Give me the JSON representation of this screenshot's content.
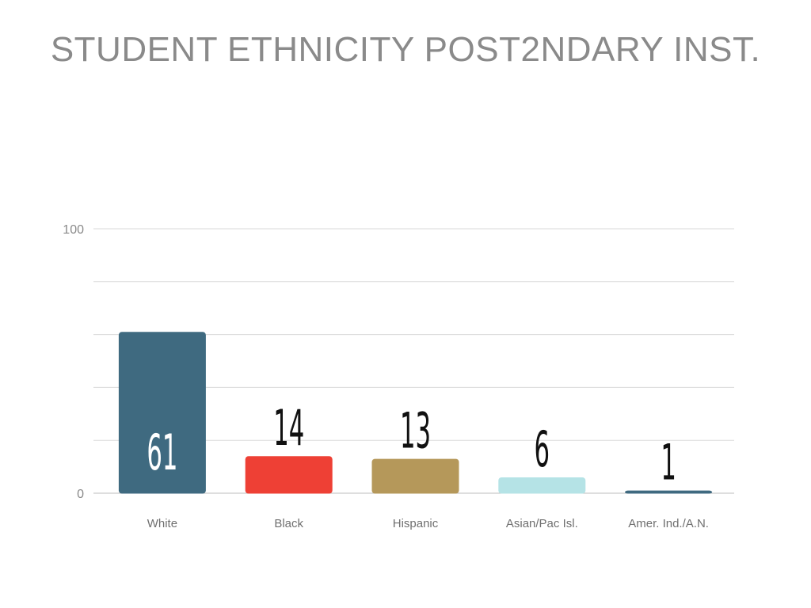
{
  "title": "STUDENT ETHNICITY POST2NDARY INST.",
  "chart_data": {
    "type": "bar",
    "title": "STUDENT ETHNICITY POST2NDARY INST.",
    "categories": [
      "White",
      "Black",
      "Hispanic",
      "Asian/Pac Isl.",
      "Amer. Ind./A.N."
    ],
    "values": [
      61,
      14,
      13,
      6,
      1
    ],
    "data_labels": [
      "61",
      "14",
      "13",
      "6",
      "1"
    ],
    "colors": [
      "#3f6a80",
      "#ee4035",
      "#b5985a",
      "#b5e3e6",
      "#3f6a80"
    ],
    "ylim": [
      0,
      100
    ],
    "y_tick_labels": [
      "0",
      "100"
    ],
    "grid": true,
    "xlabel": "",
    "ylabel": ""
  }
}
